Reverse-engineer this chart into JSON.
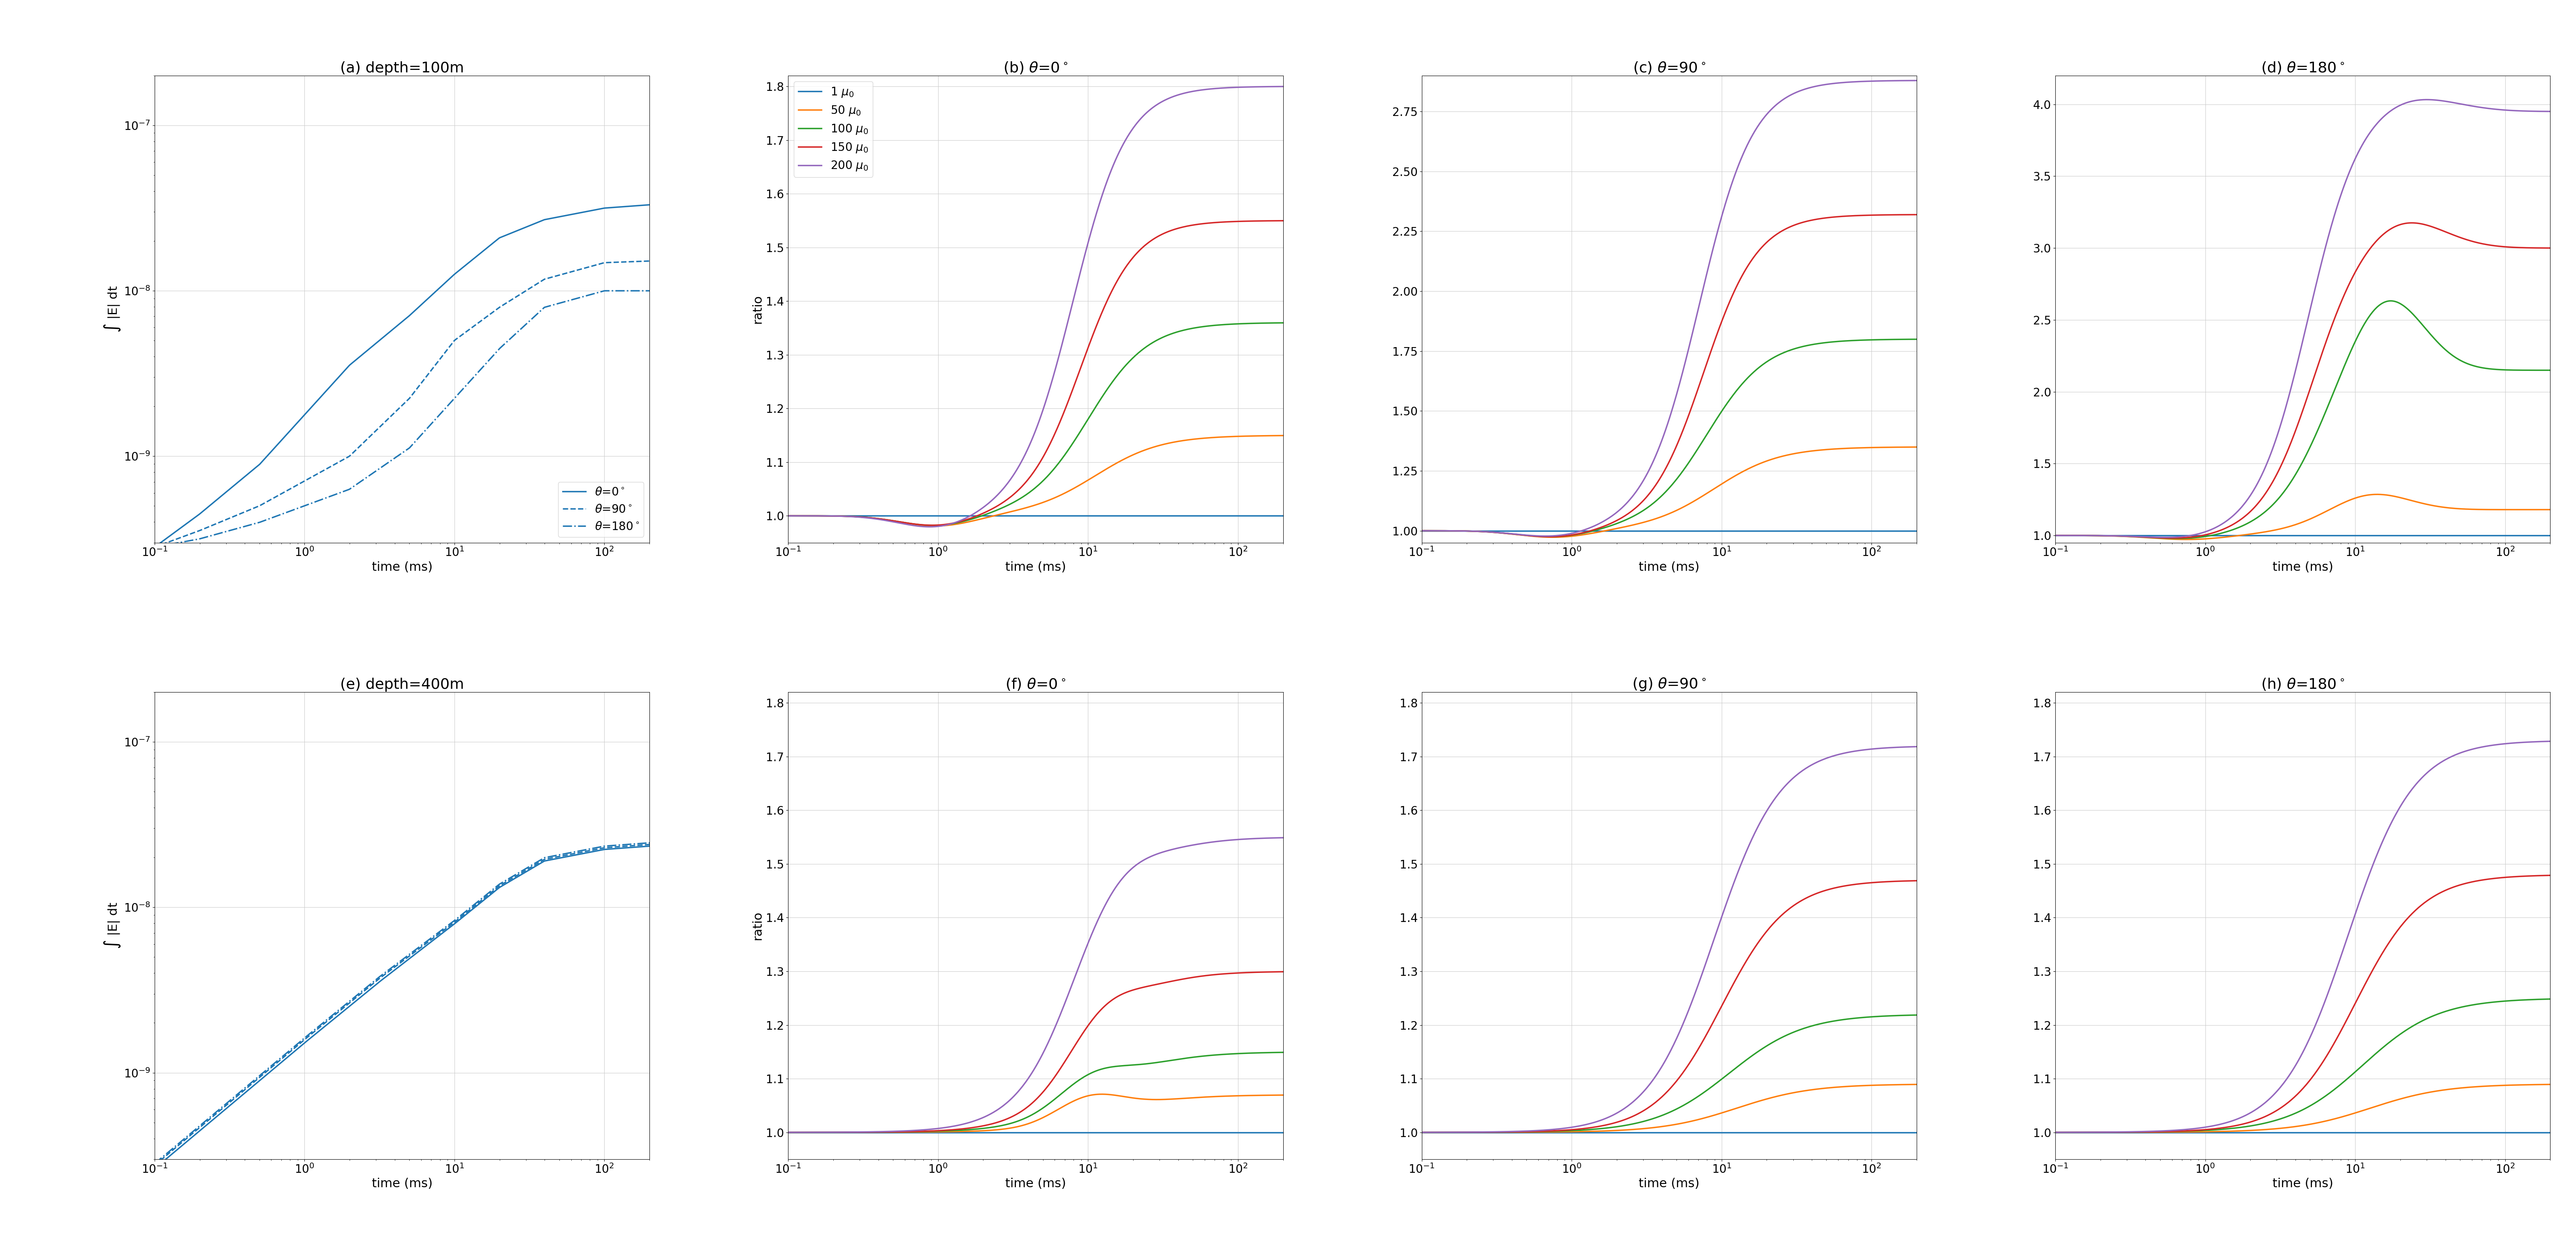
{
  "title_a": "(a) depth=100m",
  "title_e": "(e) depth=400m",
  "title_b": "(b) $\\theta$=0$^\\circ$",
  "title_c": "(c) $\\theta$=90$^\\circ$",
  "title_d": "(d) $\\theta$=180$^\\circ$",
  "title_f": "(f) $\\theta$=0$^\\circ$",
  "title_g": "(g) $\\theta$=90$^\\circ$",
  "title_h": "(h) $\\theta$=180$^\\circ$",
  "ylabel_left": "$\\int$ |E| dt",
  "ylabel_ratio": "ratio",
  "xlabel": "time (ms)",
  "legend_labels": [
    "1 $\\mu_0$",
    "50 $\\mu_0$",
    "100 $\\mu_0$",
    "150 $\\mu_0$",
    "200 $\\mu_0$"
  ],
  "legend_colors": [
    "#1f77b4",
    "#ff7f0e",
    "#2ca02c",
    "#d62728",
    "#9467bd"
  ],
  "azimuth_color": "#1f77b4",
  "figsize": [
    62.63,
    30.64
  ],
  "dpi": 100
}
